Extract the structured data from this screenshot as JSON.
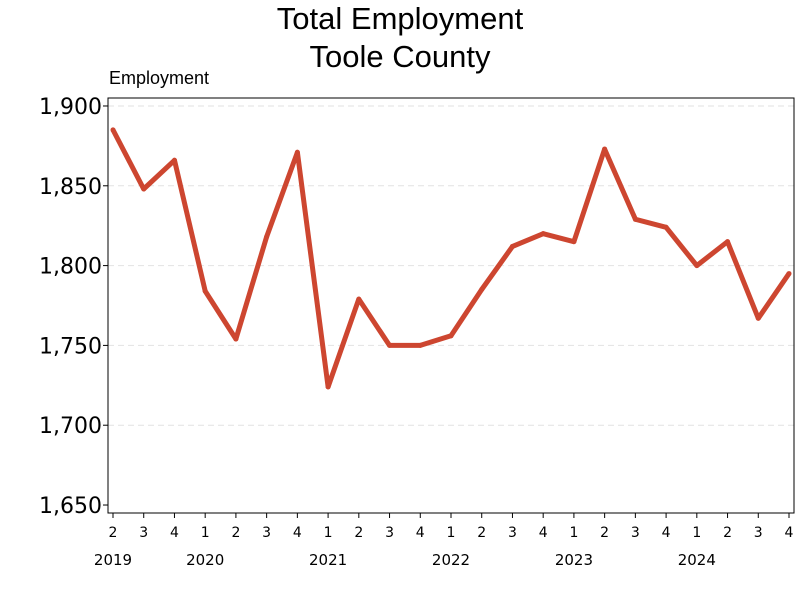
{
  "chart_data": {
    "type": "line",
    "title_lines": [
      "Total Employment",
      "Toole County"
    ],
    "ylabel": "Employment",
    "xlabel": "",
    "ylim": [
      1645,
      1905
    ],
    "yticks": [
      1650,
      1700,
      1750,
      1800,
      1850,
      1900
    ],
    "ytick_labels": [
      "1,650",
      "1,700",
      "1,750",
      "1,800",
      "1,850",
      "1,900"
    ],
    "grid": "horizontal dashed",
    "legend": "none",
    "line_color": "#CD4630",
    "grid_color": "#E2E2E2",
    "categories": [
      "2",
      "3",
      "4",
      "1",
      "2",
      "3",
      "4",
      "1",
      "2",
      "3",
      "4",
      "1",
      "2",
      "3",
      "4",
      "1",
      "2",
      "3",
      "4",
      "1",
      "2",
      "3",
      "4"
    ],
    "year_labels": [
      {
        "label": "2019",
        "index": 0
      },
      {
        "label": "2020",
        "index": 3
      },
      {
        "label": "2021",
        "index": 7
      },
      {
        "label": "2022",
        "index": 11
      },
      {
        "label": "2023",
        "index": 15
      },
      {
        "label": "2024",
        "index": 19
      }
    ],
    "x": [
      "2019 Q2",
      "2019 Q3",
      "2019 Q4",
      "2020 Q1",
      "2020 Q2",
      "2020 Q3",
      "2020 Q4",
      "2021 Q1",
      "2021 Q2",
      "2021 Q3",
      "2021 Q4",
      "2022 Q1",
      "2022 Q2",
      "2022 Q3",
      "2022 Q4",
      "2023 Q1",
      "2023 Q2",
      "2023 Q3",
      "2023 Q4",
      "2024 Q1",
      "2024 Q2",
      "2024 Q3",
      "2024 Q4"
    ],
    "values": [
      1885,
      1848,
      1866,
      1784,
      1754,
      1818,
      1871,
      1724,
      1779,
      1750,
      1750,
      1756,
      1785,
      1812,
      1820,
      1815,
      1873,
      1829,
      1824,
      1800,
      1815,
      1767,
      1795
    ]
  }
}
